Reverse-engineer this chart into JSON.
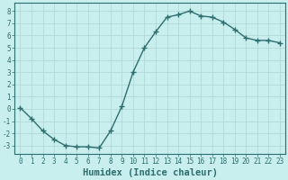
{
  "x": [
    0,
    1,
    2,
    3,
    4,
    5,
    6,
    7,
    8,
    9,
    10,
    11,
    12,
    13,
    14,
    15,
    16,
    17,
    18,
    19,
    20,
    21,
    22,
    23
  ],
  "y": [
    0.1,
    -0.8,
    -1.8,
    -2.5,
    -3.0,
    -3.1,
    -3.1,
    -3.2,
    -1.8,
    0.2,
    3.0,
    5.0,
    6.3,
    7.5,
    7.7,
    8.0,
    7.6,
    7.5,
    7.1,
    6.5,
    5.8,
    5.6,
    5.6,
    5.4
  ],
  "line_color": "#2d6e6e",
  "marker": "+",
  "marker_size": 4,
  "line_width": 1.0,
  "xlabel": "Humidex (Indice chaleur)",
  "xlabel_fontsize": 7.5,
  "bg_color": "#c8eeed",
  "grid_color": "#aed4d4",
  "xlim": [
    -0.5,
    23.5
  ],
  "ylim": [
    -3.7,
    8.7
  ],
  "yticks": [
    -3,
    -2,
    -1,
    0,
    1,
    2,
    3,
    4,
    5,
    6,
    7,
    8
  ],
  "xticks": [
    0,
    1,
    2,
    3,
    4,
    5,
    6,
    7,
    8,
    9,
    10,
    11,
    12,
    13,
    14,
    15,
    16,
    17,
    18,
    19,
    20,
    21,
    22,
    23
  ],
  "tick_fontsize": 5.5,
  "tick_color": "#2d6e6e",
  "spine_color": "#2d6e6e",
  "xlabel_fontweight": "bold"
}
